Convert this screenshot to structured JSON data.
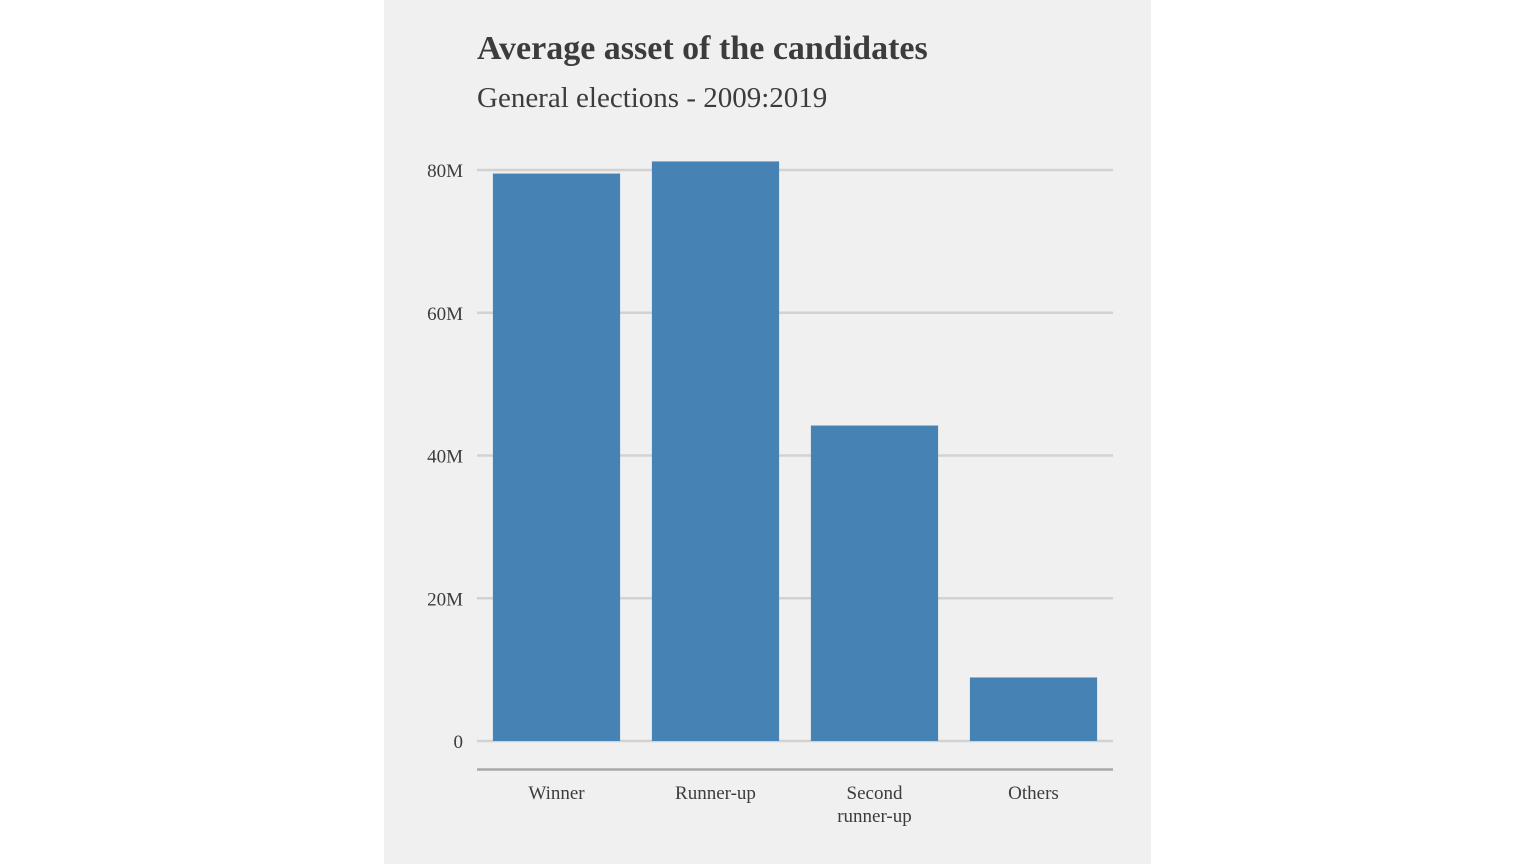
{
  "chart_data": {
    "type": "bar",
    "title": "Average asset of the candidates",
    "subtitle": "General elections - 2009:2019",
    "categories": [
      [
        "Winner"
      ],
      [
        "Runner-up"
      ],
      [
        "Second",
        "runner-up"
      ],
      [
        "Others"
      ]
    ],
    "values": [
      79500000,
      81200000,
      44200000,
      8900000
    ],
    "yticks": [
      0,
      20000000,
      40000000,
      60000000,
      80000000
    ],
    "yticklabels": [
      "0",
      "20M",
      "40M",
      "60M",
      "80M"
    ],
    "ylim": [
      0,
      80000000
    ],
    "xlabel": "",
    "ylabel": "",
    "grid": true,
    "bar_color": "#4682b4",
    "background_color": "#f0f0f0",
    "grid_color": "#d2d2d2",
    "text_color": "#3c3c3c"
  }
}
